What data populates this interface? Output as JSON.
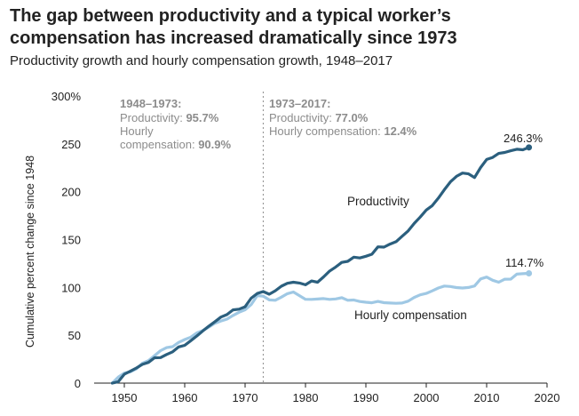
{
  "title": "The gap between productivity and a typical worker’s compensation has increased dramatically since 1973",
  "subtitle": "Productivity growth and hourly compensation growth, 1948–2017",
  "colors": {
    "productivity": "#2b5f7e",
    "compensation": "#9fc8e4",
    "annotation": "#8c8c8c",
    "axis": "#222222"
  },
  "annotations": {
    "left": {
      "heading": "1948–1973:",
      "prod_label": "Productivity:",
      "prod_value": "95.7%",
      "comp_label_1": "Hourly",
      "comp_label_2": "compensation:",
      "comp_value": "90.9%"
    },
    "right": {
      "heading": "1973–2017:",
      "prod_label": "Productivity:",
      "prod_value": "77.0%",
      "comp_label": "Hourly compensation:",
      "comp_value": "12.4%"
    }
  },
  "chart_data": {
    "type": "line",
    "title": "The gap between productivity and a typical worker’s compensation has increased dramatically since 1973",
    "subtitle": "Productivity growth and hourly compensation growth, 1948–2017",
    "xlabel": "",
    "ylabel": "Cumulative percent change since 1948",
    "xlim": [
      1945,
      2020
    ],
    "ylim": [
      0,
      300
    ],
    "x_ticks": [
      1950,
      1960,
      1970,
      1980,
      1990,
      2000,
      2010,
      2020
    ],
    "x_tick_labels": [
      "1950",
      "1960",
      "1970",
      "1980",
      "1990",
      "2000",
      "2010",
      "2020"
    ],
    "y_ticks": [
      0,
      50,
      100,
      150,
      200,
      250,
      300
    ],
    "y_tick_labels": [
      "0",
      "50",
      "100",
      "150",
      "200",
      "250",
      "300%"
    ],
    "grid": false,
    "vline_x": 1973,
    "x": [
      1948,
      1949,
      1950,
      1951,
      1952,
      1953,
      1954,
      1955,
      1956,
      1957,
      1958,
      1959,
      1960,
      1961,
      1962,
      1963,
      1964,
      1965,
      1966,
      1967,
      1968,
      1969,
      1970,
      1971,
      1972,
      1973,
      1974,
      1975,
      1976,
      1977,
      1978,
      1979,
      1980,
      1981,
      1982,
      1983,
      1984,
      1985,
      1986,
      1987,
      1988,
      1989,
      1990,
      1991,
      1992,
      1993,
      1994,
      1995,
      1996,
      1997,
      1998,
      1999,
      2000,
      2001,
      2002,
      2003,
      2004,
      2005,
      2006,
      2007,
      2008,
      2009,
      2010,
      2011,
      2012,
      2013,
      2014,
      2015,
      2016,
      2017
    ],
    "series": [
      {
        "name": "Productivity",
        "label": "Productivity",
        "end_label": "246.3%",
        "values": [
          0,
          1.5,
          9.3,
          12.4,
          15.8,
          19.6,
          21.6,
          26.5,
          26.7,
          29.9,
          32.7,
          37.8,
          39.5,
          44.3,
          49.2,
          54.5,
          59.5,
          64.2,
          69.0,
          71.6,
          76.5,
          77.3,
          79.8,
          88.7,
          93.6,
          95.7,
          92.9,
          96.5,
          101.2,
          104.3,
          105.4,
          104.6,
          102.7,
          106.7,
          105.4,
          111.0,
          117.1,
          121.3,
          126.1,
          127.2,
          131.6,
          130.8,
          132.5,
          134.7,
          142.4,
          142.1,
          145.3,
          147.8,
          153.4,
          159.0,
          166.8,
          173.5,
          180.8,
          185.5,
          193.3,
          202.1,
          210.3,
          216.0,
          219.5,
          218.6,
          214.8,
          225.2,
          233.7,
          235.8,
          240.0,
          241.0,
          242.8,
          244.4,
          243.8,
          246.3
        ]
      },
      {
        "name": "Hourly compensation",
        "label": "Hourly compensation",
        "end_label": "114.7%",
        "values": [
          0,
          6.3,
          10.5,
          11.8,
          15.0,
          20.8,
          23.5,
          28.7,
          33.9,
          37.1,
          38.1,
          42.5,
          45.5,
          48.0,
          52.5,
          55.0,
          58.5,
          62.5,
          64.9,
          66.9,
          70.7,
          74.0,
          76.6,
          82.0,
          91.3,
          90.9,
          86.9,
          86.6,
          89.8,
          93.4,
          95.2,
          91.4,
          87.6,
          87.5,
          87.9,
          88.3,
          87.5,
          88.0,
          89.3,
          86.6,
          86.8,
          85.3,
          84.5,
          84.0,
          85.4,
          84.1,
          83.7,
          83.4,
          83.7,
          85.6,
          89.5,
          92.2,
          93.7,
          96.4,
          99.4,
          101.4,
          101.0,
          99.8,
          99.4,
          99.9,
          101.5,
          108.9,
          110.8,
          107.5,
          105.4,
          108.6,
          108.7,
          113.9,
          114.3,
          114.7
        ]
      }
    ]
  }
}
